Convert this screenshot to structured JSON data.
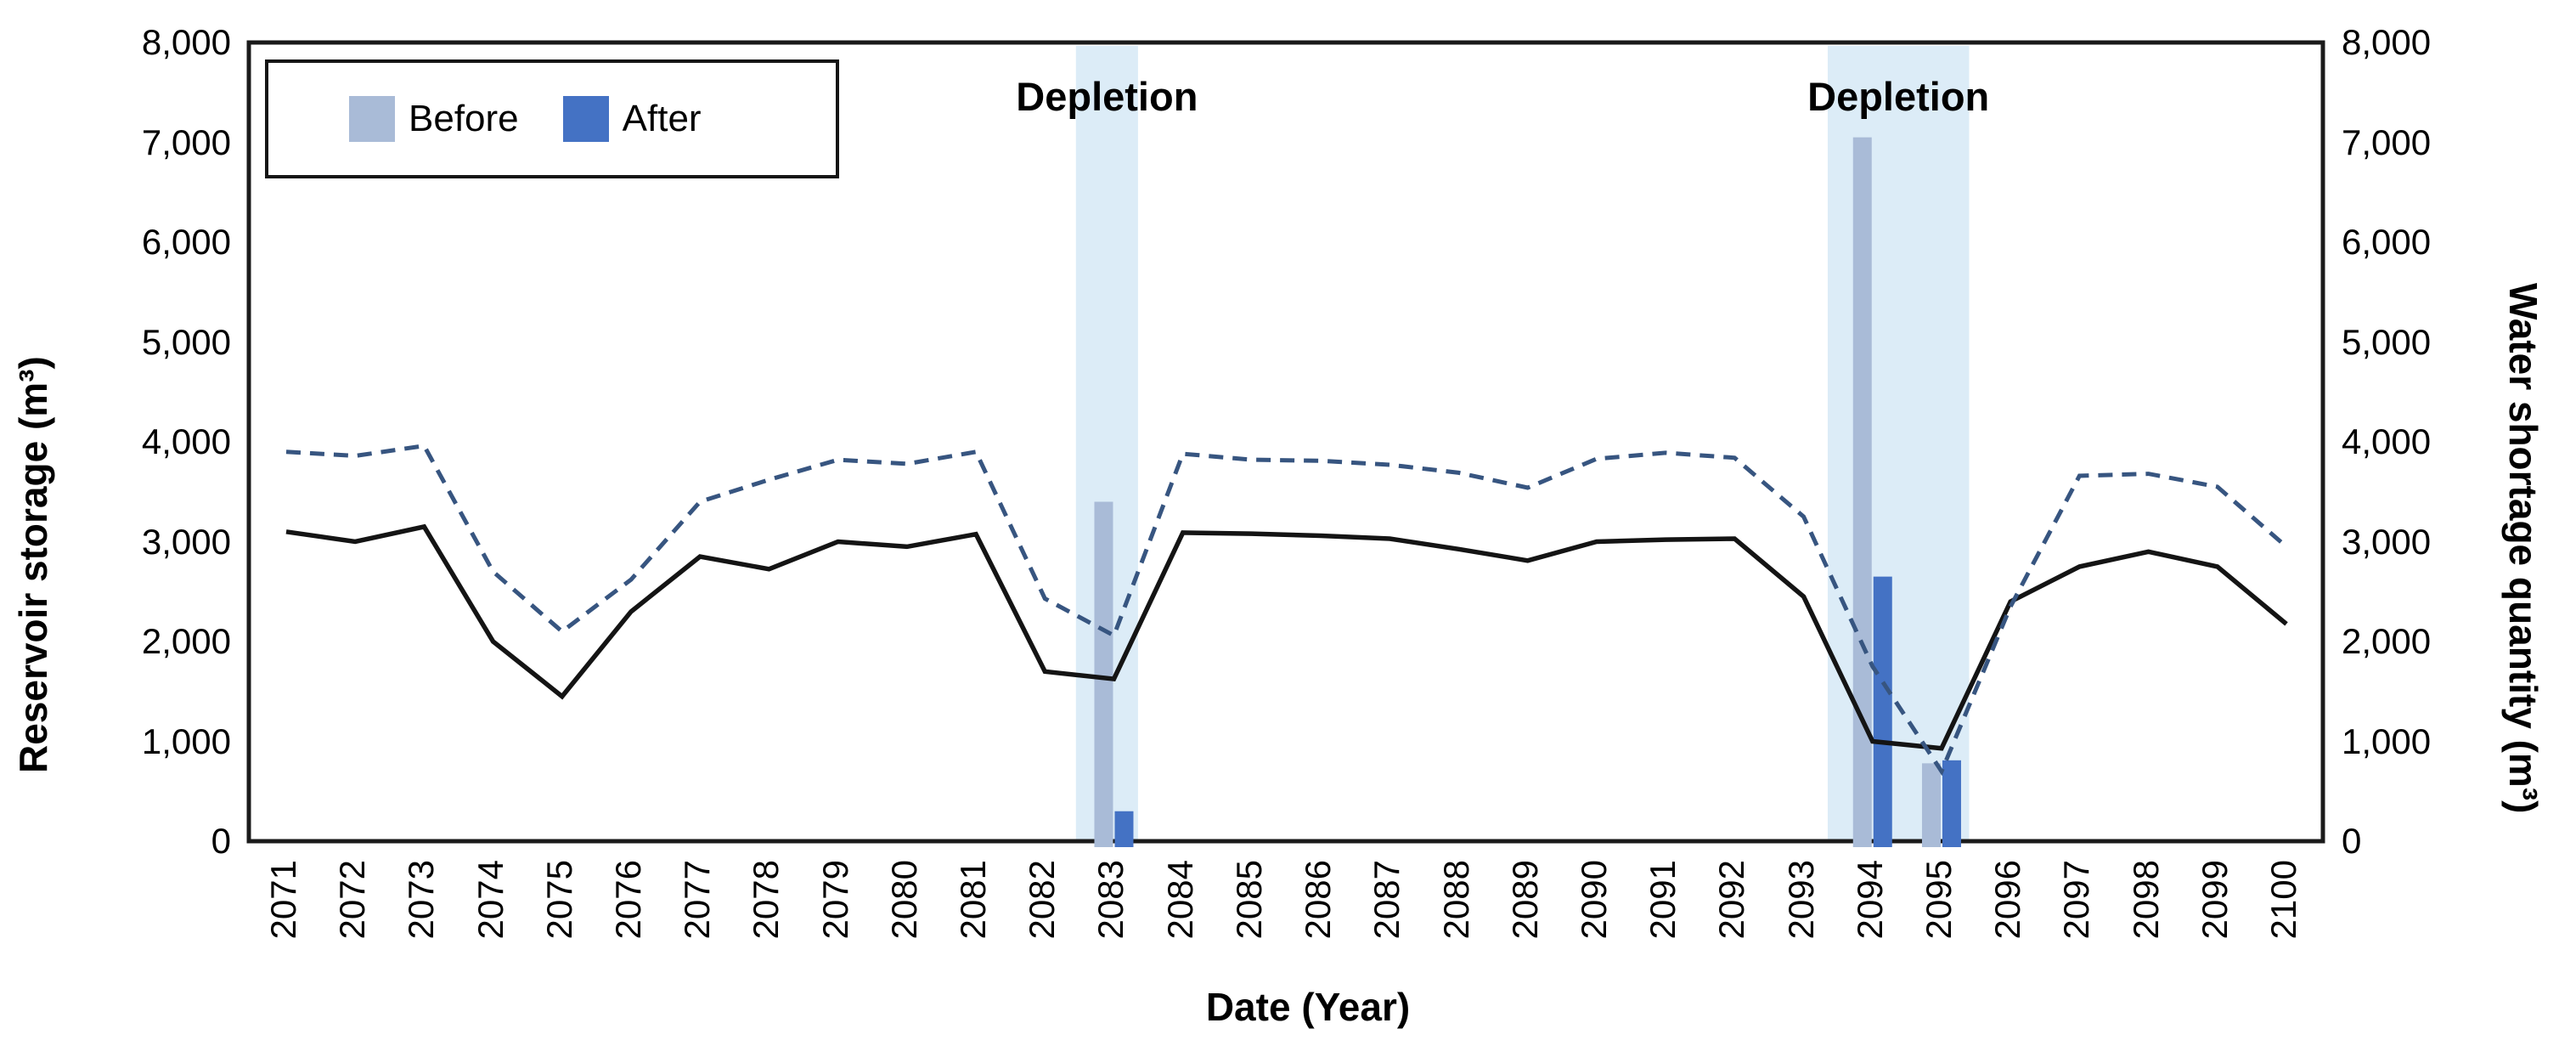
{
  "chart_data": {
    "type": "line",
    "title": "",
    "xlabel": "Date (Year)",
    "x_years": [
      2071,
      2072,
      2073,
      2074,
      2075,
      2076,
      2077,
      2078,
      2079,
      2080,
      2081,
      2082,
      2083,
      2084,
      2085,
      2086,
      2087,
      2088,
      2089,
      2090,
      2091,
      2092,
      2093,
      2094,
      2095,
      2096,
      2097,
      2098,
      2099,
      2100
    ],
    "left_axis": {
      "label": "Reservoir storage (m³)",
      "lim": [
        0,
        8000
      ],
      "tick_step": 1000,
      "ticks": [
        "0",
        "1,000",
        "2,000",
        "3,000",
        "4,000",
        "5,000",
        "6,000",
        "7,000",
        "8,000"
      ]
    },
    "right_axis": {
      "label": "Water shortage quantity (m³)",
      "lim": [
        0,
        8000
      ],
      "tick_step": 1000,
      "ticks": [
        "0",
        "1,000",
        "2,000",
        "3,000",
        "4,000",
        "5,000",
        "6,000",
        "7,000",
        "8,000"
      ]
    },
    "series": [
      {
        "name": "solid-line",
        "style": "solid",
        "color": "#141414",
        "values": [
          3100,
          3000,
          3150,
          2000,
          1450,
          2300,
          2850,
          2725,
          3000,
          2950,
          3075,
          1700,
          1625,
          3090,
          3080,
          3060,
          3030,
          2925,
          2810,
          3000,
          3020,
          3030,
          2450,
          1000,
          930,
          2400,
          2750,
          2900,
          2750,
          2175
        ]
      },
      {
        "name": "dashed-line",
        "style": "dashed",
        "color": "#375580",
        "values": [
          3900,
          3860,
          3960,
          2700,
          2100,
          2620,
          3400,
          3620,
          3820,
          3780,
          3900,
          2430,
          2060,
          3880,
          3820,
          3810,
          3770,
          3690,
          3540,
          3830,
          3890,
          3840,
          3250,
          1750,
          700,
          2350,
          3660,
          3680,
          3550,
          2950
        ]
      }
    ],
    "bar_series": [
      {
        "name": "Before",
        "color": "#a9bbd7",
        "points": [
          {
            "year": 2083,
            "value": 3400
          },
          {
            "year": 2094,
            "value": 7050
          },
          {
            "year": 2095,
            "value": 780
          }
        ]
      },
      {
        "name": "After",
        "color": "#4472c4",
        "points": [
          {
            "year": 2083,
            "value": 300
          },
          {
            "year": 2094,
            "value": 2650
          },
          {
            "year": 2095,
            "value": 810
          }
        ]
      }
    ],
    "depletion_bands": [
      {
        "label": "Depletion",
        "from": 2082.45,
        "to": 2083.35
      },
      {
        "label": "Depletion",
        "from": 2093.35,
        "to": 2095.4
      }
    ],
    "band_color": "#dcecf7",
    "legend": [
      "Before",
      "After"
    ],
    "grid": false,
    "legend_position": "top-left"
  }
}
